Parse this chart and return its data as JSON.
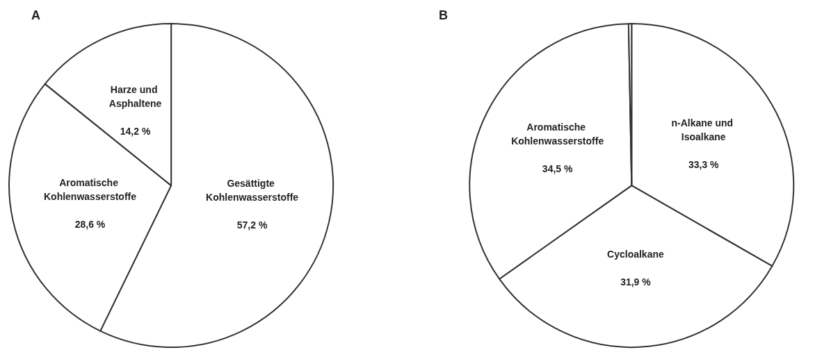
{
  "chart_data": [
    {
      "type": "pie",
      "title": "A",
      "categories": [
        "Gesättigte Kohlenwasserstoffe",
        "Aromatische Kohlenwasserstoffe",
        "Harze und Asphaltene"
      ],
      "values": [
        57.2,
        28.6,
        14.2
      ],
      "value_labels": [
        "57,2 %",
        "28,6 %",
        "14,2 %"
      ],
      "colors": [
        "#ffffff",
        "#ffffff",
        "#ffffff"
      ],
      "legend": false
    },
    {
      "type": "pie",
      "title": "B",
      "categories": [
        "n-Alkane und Isoalkane",
        "Cycloalkane",
        "Aromatische Kohlenwasserstoffe",
        null
      ],
      "values": [
        33.3,
        31.9,
        34.5,
        0.3
      ],
      "value_labels": [
        "33,3 %",
        "31,9 %",
        "34,5 %",
        null
      ],
      "colors": [
        "#ffffff",
        "#ffffff",
        "#ffffff",
        "#ffffff"
      ],
      "legend": false
    }
  ]
}
